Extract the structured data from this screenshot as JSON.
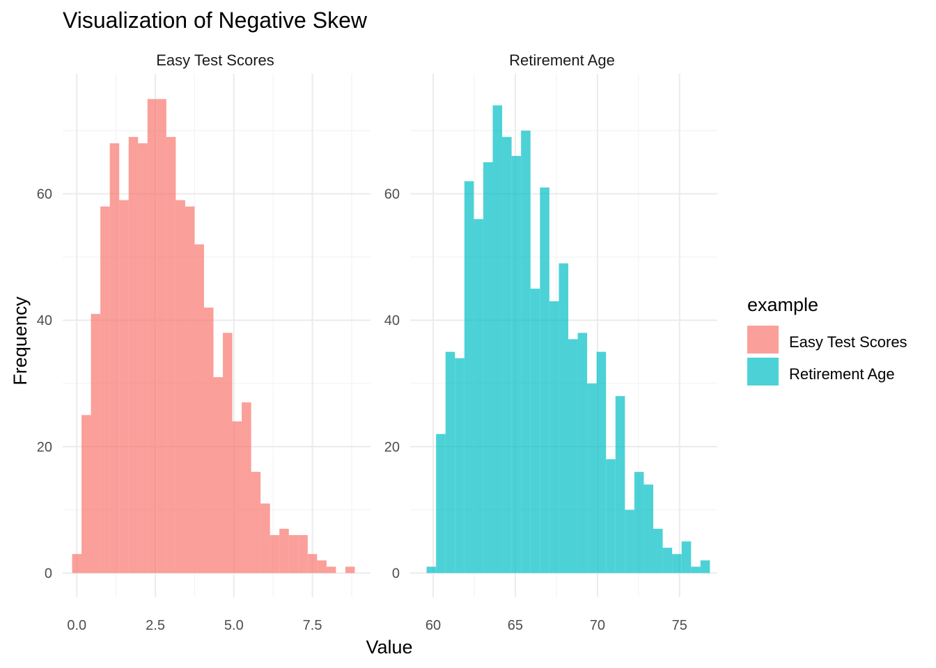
{
  "chart_data": {
    "type": "bar",
    "title": "Visualization of Negative Skew",
    "xlabel": "Value",
    "ylabel": "Frequency",
    "legend": {
      "title": "example",
      "position": "right",
      "entries": [
        {
          "label": "Easy Test Scores",
          "color": "#F8766D"
        },
        {
          "label": "Retirement Age",
          "color": "#00BFC4"
        }
      ]
    },
    "panels": [
      {
        "strip": "Easy Test Scores",
        "color": "#F8766D",
        "xlim": [
          -0.45,
          9.35
        ],
        "ylim": [
          -3.8,
          79
        ],
        "x_ticks": [
          0.0,
          2.5,
          5.0,
          7.5
        ],
        "x_tick_labels": [
          "0.0",
          "2.5",
          "5.0",
          "7.5"
        ],
        "y_ticks": [
          0,
          20,
          40,
          60
        ],
        "y_tick_labels": [
          "0",
          "20",
          "40",
          "60"
        ],
        "bin_start": -0.15,
        "bin_width": 0.3,
        "values": [
          3,
          25,
          41,
          58,
          68,
          59,
          69,
          68,
          75,
          75,
          69,
          59,
          58,
          52,
          42,
          31,
          38,
          24,
          27,
          16,
          11,
          6,
          7,
          6,
          6,
          3,
          2,
          1,
          0,
          1
        ]
      },
      {
        "strip": "Retirement Age",
        "color": "#00BFC4",
        "xlim": [
          58.6,
          77.3
        ],
        "ylim": [
          -3.8,
          79
        ],
        "x_ticks": [
          60,
          65,
          70,
          75
        ],
        "x_tick_labels": [
          "60",
          "65",
          "70",
          "75"
        ],
        "y_ticks": [
          0,
          20,
          40,
          60
        ],
        "y_tick_labels": [
          "0",
          "20",
          "40",
          "60"
        ],
        "bin_start": 59.6,
        "bin_width": 0.575,
        "values": [
          1,
          22,
          35,
          34,
          62,
          56,
          65,
          74,
          69,
          66,
          70,
          45,
          61,
          43,
          49,
          37,
          38,
          30,
          35,
          18,
          28,
          10,
          16,
          14,
          7,
          4,
          3,
          5,
          1,
          2
        ]
      }
    ]
  }
}
